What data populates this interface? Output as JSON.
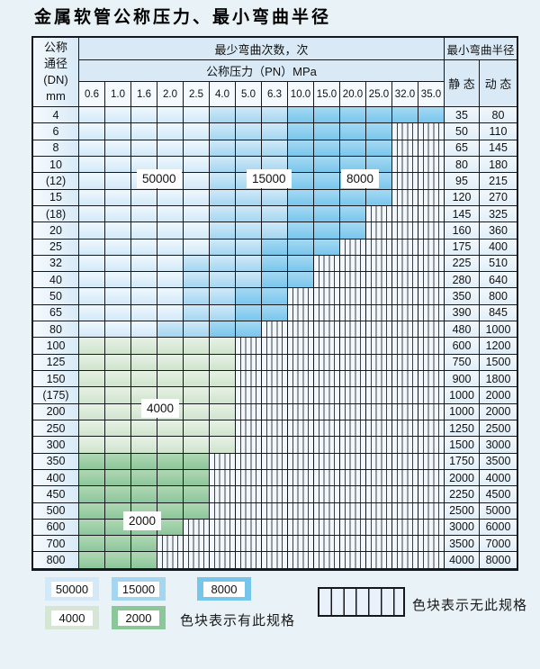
{
  "title": "金属软管公称压力、最小弯曲半径",
  "table": {
    "header": {
      "dn_lines": [
        "公称",
        "通径",
        "(DN)",
        "mm"
      ],
      "bend_cycles_label": "最少弯曲次数，次",
      "pressure_label": "公称压力（PN）MPa",
      "radius_label": "最小弯曲半径",
      "static_label": "静 态",
      "dynamic_label": "动 态",
      "pressure_columns": [
        "0.6",
        "1.0",
        "1.6",
        "2.0",
        "2.5",
        "4.0",
        "5.0",
        "6.3",
        "10.0",
        "15.0",
        "20.0",
        "25.0",
        "32.0",
        "35.0"
      ]
    },
    "zone_labels": [
      {
        "text": "50000"
      },
      {
        "text": "15000"
      },
      {
        "text": "8000"
      },
      {
        "text": "4000"
      },
      {
        "text": "2000"
      }
    ],
    "zone_meaning": {
      "b1": "50000",
      "b2": "15000",
      "b3": "8000",
      "g1": "4000",
      "g2": "2000",
      "h": "no-spec"
    },
    "rows": [
      {
        "dn": "4",
        "static": "35",
        "dynamic": "80",
        "cells": [
          "b1",
          "b1",
          "b1",
          "b1",
          "b1",
          "b2",
          "b2",
          "b2",
          "b3",
          "b3",
          "b3",
          "b3",
          "b3",
          "b3"
        ]
      },
      {
        "dn": "6",
        "static": "50",
        "dynamic": "110",
        "cells": [
          "b1",
          "b1",
          "b1",
          "b1",
          "b1",
          "b2",
          "b2",
          "b2",
          "b3",
          "b3",
          "b3",
          "b3",
          "h",
          "h"
        ]
      },
      {
        "dn": "8",
        "static": "65",
        "dynamic": "145",
        "cells": [
          "b1",
          "b1",
          "b1",
          "b1",
          "b1",
          "b2",
          "b2",
          "b2",
          "b3",
          "b3",
          "b3",
          "b3",
          "h",
          "h"
        ]
      },
      {
        "dn": "10",
        "static": "80",
        "dynamic": "180",
        "cells": [
          "b1",
          "b1",
          "b1",
          "b1",
          "b1",
          "b2",
          "b2",
          "b2",
          "b3",
          "b3",
          "b3",
          "b3",
          "h",
          "h"
        ]
      },
      {
        "dn": "(12)",
        "static": "95",
        "dynamic": "215",
        "cells": [
          "b1",
          "b1",
          "b1",
          "b1",
          "b1",
          "b2",
          "b2",
          "b2",
          "b3",
          "b3",
          "b3",
          "b3",
          "h",
          "h"
        ]
      },
      {
        "dn": "15",
        "static": "120",
        "dynamic": "270",
        "cells": [
          "b1",
          "b1",
          "b1",
          "b1",
          "b1",
          "b2",
          "b2",
          "b2",
          "b3",
          "b3",
          "b3",
          "b3",
          "h",
          "h"
        ]
      },
      {
        "dn": "(18)",
        "static": "145",
        "dynamic": "325",
        "cells": [
          "b1",
          "b1",
          "b1",
          "b1",
          "b1",
          "b2",
          "b2",
          "b2",
          "b3",
          "b3",
          "b3",
          "h",
          "h",
          "h"
        ]
      },
      {
        "dn": "20",
        "static": "160",
        "dynamic": "360",
        "cells": [
          "b1",
          "b1",
          "b1",
          "b1",
          "b1",
          "b2",
          "b2",
          "b2",
          "b3",
          "b3",
          "b3",
          "h",
          "h",
          "h"
        ]
      },
      {
        "dn": "25",
        "static": "175",
        "dynamic": "400",
        "cells": [
          "b1",
          "b1",
          "b1",
          "b1",
          "b1",
          "b2",
          "b2",
          "b3",
          "b3",
          "b3",
          "h",
          "h",
          "h",
          "h"
        ]
      },
      {
        "dn": "32",
        "static": "225",
        "dynamic": "510",
        "cells": [
          "b1",
          "b1",
          "b1",
          "b1",
          "b2",
          "b2",
          "b2",
          "b3",
          "b3",
          "h",
          "h",
          "h",
          "h",
          "h"
        ]
      },
      {
        "dn": "40",
        "static": "280",
        "dynamic": "640",
        "cells": [
          "b1",
          "b1",
          "b1",
          "b1",
          "b2",
          "b2",
          "b2",
          "b3",
          "b3",
          "h",
          "h",
          "h",
          "h",
          "h"
        ]
      },
      {
        "dn": "50",
        "static": "350",
        "dynamic": "800",
        "cells": [
          "b1",
          "b1",
          "b1",
          "b1",
          "b2",
          "b2",
          "b3",
          "b3",
          "h",
          "h",
          "h",
          "h",
          "h",
          "h"
        ]
      },
      {
        "dn": "65",
        "static": "390",
        "dynamic": "845",
        "cells": [
          "b1",
          "b1",
          "b1",
          "b1",
          "b2",
          "b2",
          "b3",
          "b3",
          "h",
          "h",
          "h",
          "h",
          "h",
          "h"
        ]
      },
      {
        "dn": "80",
        "static": "480",
        "dynamic": "1000",
        "cells": [
          "b1",
          "b1",
          "b1",
          "b2",
          "b2",
          "b3",
          "b3",
          "h",
          "h",
          "h",
          "h",
          "h",
          "h",
          "h"
        ]
      },
      {
        "dn": "100",
        "static": "600",
        "dynamic": "1200",
        "cells": [
          "g1",
          "g1",
          "g1",
          "g1",
          "g1",
          "g1",
          "h",
          "h",
          "h",
          "h",
          "h",
          "h",
          "h",
          "h"
        ]
      },
      {
        "dn": "125",
        "static": "750",
        "dynamic": "1500",
        "cells": [
          "g1",
          "g1",
          "g1",
          "g1",
          "g1",
          "g1",
          "h",
          "h",
          "h",
          "h",
          "h",
          "h",
          "h",
          "h"
        ]
      },
      {
        "dn": "150",
        "static": "900",
        "dynamic": "1800",
        "cells": [
          "g1",
          "g1",
          "g1",
          "g1",
          "g1",
          "g1",
          "h",
          "h",
          "h",
          "h",
          "h",
          "h",
          "h",
          "h"
        ]
      },
      {
        "dn": "(175)",
        "static": "1000",
        "dynamic": "2000",
        "cells": [
          "g1",
          "g1",
          "g1",
          "g1",
          "g1",
          "g1",
          "h",
          "h",
          "h",
          "h",
          "h",
          "h",
          "h",
          "h"
        ]
      },
      {
        "dn": "200",
        "static": "1000",
        "dynamic": "2000",
        "cells": [
          "g1",
          "g1",
          "g1",
          "g1",
          "g1",
          "g1",
          "h",
          "h",
          "h",
          "h",
          "h",
          "h",
          "h",
          "h"
        ]
      },
      {
        "dn": "250",
        "static": "1250",
        "dynamic": "2500",
        "cells": [
          "g1",
          "g1",
          "g1",
          "g1",
          "g1",
          "g1",
          "h",
          "h",
          "h",
          "h",
          "h",
          "h",
          "h",
          "h"
        ]
      },
      {
        "dn": "300",
        "static": "1500",
        "dynamic": "3000",
        "cells": [
          "g1",
          "g1",
          "g1",
          "g1",
          "g1",
          "g1",
          "h",
          "h",
          "h",
          "h",
          "h",
          "h",
          "h",
          "h"
        ]
      },
      {
        "dn": "350",
        "static": "1750",
        "dynamic": "3500",
        "cells": [
          "g2",
          "g2",
          "g2",
          "g2",
          "g2",
          "h",
          "h",
          "h",
          "h",
          "h",
          "h",
          "h",
          "h",
          "h"
        ]
      },
      {
        "dn": "400",
        "static": "2000",
        "dynamic": "4000",
        "cells": [
          "g2",
          "g2",
          "g2",
          "g2",
          "g2",
          "h",
          "h",
          "h",
          "h",
          "h",
          "h",
          "h",
          "h",
          "h"
        ]
      },
      {
        "dn": "450",
        "static": "2250",
        "dynamic": "4500",
        "cells": [
          "g2",
          "g2",
          "g2",
          "g2",
          "g2",
          "h",
          "h",
          "h",
          "h",
          "h",
          "h",
          "h",
          "h",
          "h"
        ]
      },
      {
        "dn": "500",
        "static": "2500",
        "dynamic": "5000",
        "cells": [
          "g2",
          "g2",
          "g2",
          "g2",
          "g2",
          "h",
          "h",
          "h",
          "h",
          "h",
          "h",
          "h",
          "h",
          "h"
        ]
      },
      {
        "dn": "600",
        "static": "3000",
        "dynamic": "6000",
        "cells": [
          "g2",
          "g2",
          "g2",
          "g2",
          "h",
          "h",
          "h",
          "h",
          "h",
          "h",
          "h",
          "h",
          "h",
          "h"
        ]
      },
      {
        "dn": "700",
        "static": "3500",
        "dynamic": "7000",
        "cells": [
          "g2",
          "g2",
          "g2",
          "h",
          "h",
          "h",
          "h",
          "h",
          "h",
          "h",
          "h",
          "h",
          "h",
          "h"
        ]
      },
      {
        "dn": "800",
        "static": "4000",
        "dynamic": "8000",
        "cells": [
          "g2",
          "g2",
          "g2",
          "h",
          "h",
          "h",
          "h",
          "h",
          "h",
          "h",
          "h",
          "h",
          "h",
          "h"
        ]
      }
    ]
  },
  "legend": {
    "row1": [
      {
        "value": "50000",
        "zone": "b1"
      },
      {
        "value": "15000",
        "zone": "b2"
      },
      {
        "value": "8000",
        "zone": "b3"
      }
    ],
    "row2": [
      {
        "value": "4000",
        "zone": "g1"
      },
      {
        "value": "2000",
        "zone": "g2"
      }
    ],
    "has_spec_text": "色块表示有此规格",
    "no_spec_text": "色块表示无此规格"
  },
  "colors": {
    "blue_50000": "#d4e9f7",
    "blue_15000": "#a5d6f0",
    "blue_8000": "#76c5eb",
    "green_4000": "#d5e7d4",
    "green_2000": "#8cc79a",
    "hatch_background": "#f2f7fb",
    "page_background": "#e9f3f7",
    "grid": "#15181c"
  }
}
